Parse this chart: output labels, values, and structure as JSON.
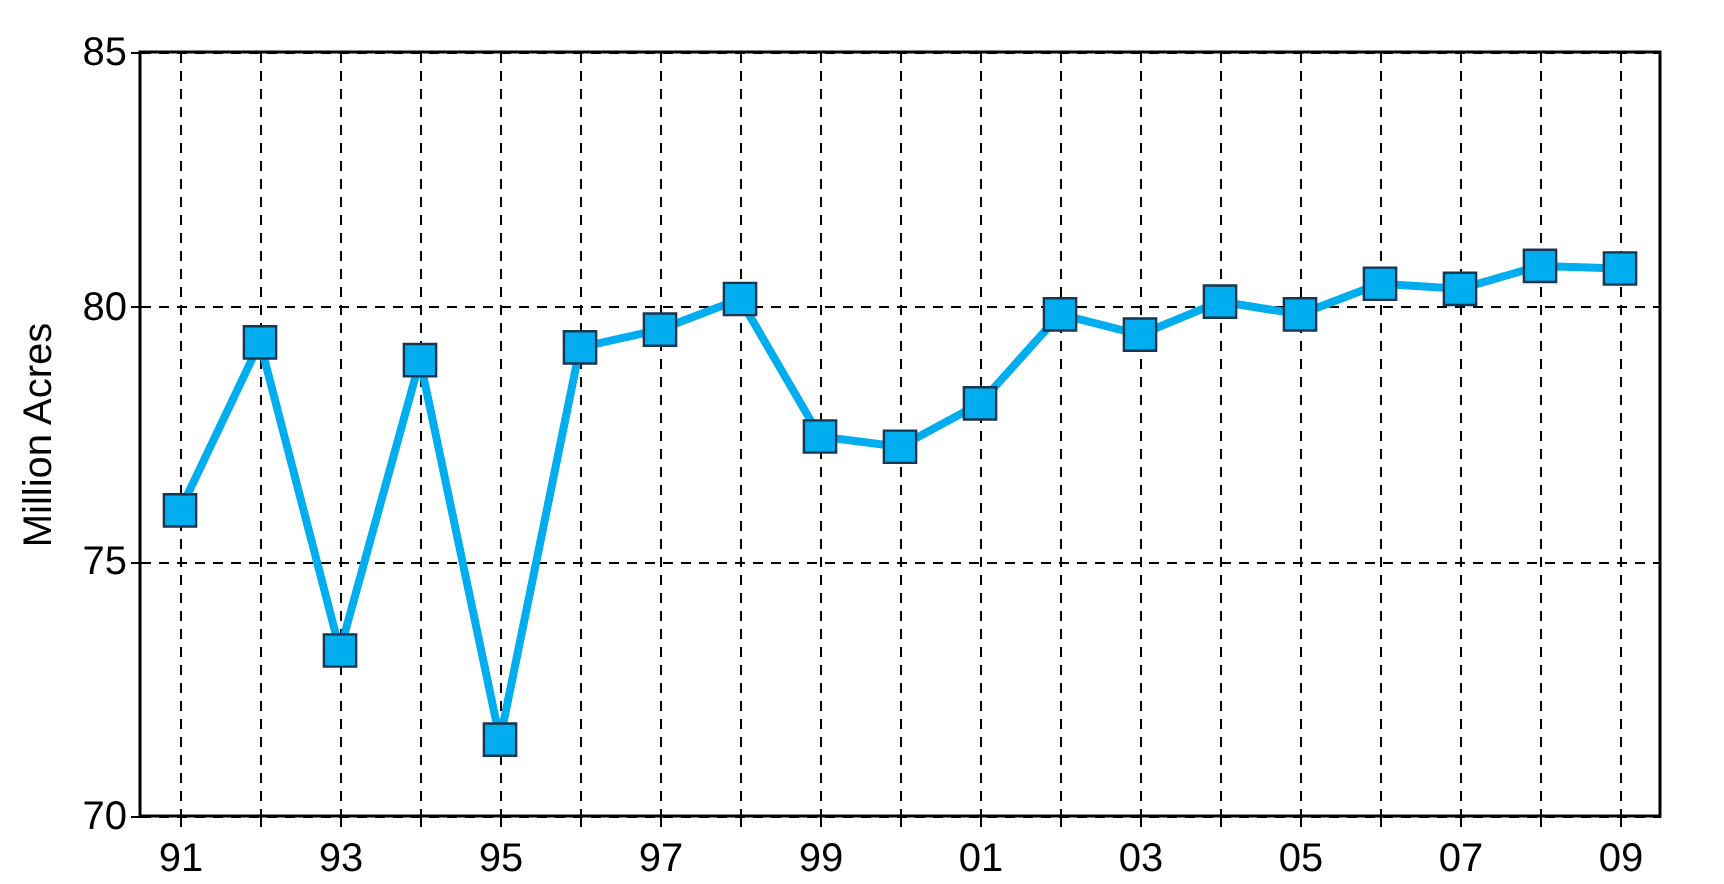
{
  "chart_data": {
    "type": "line",
    "ylabel": "Million Acres",
    "categories": [
      "91",
      null,
      "93",
      null,
      "95",
      null,
      "97",
      null,
      "99",
      null,
      "01",
      null,
      "03",
      null,
      "05",
      null,
      "07",
      null,
      "09"
    ],
    "series": [
      {
        "color": "#00aeef",
        "values": [
          76.0,
          79.3,
          73.25,
          78.95,
          71.5,
          79.2,
          79.55,
          80.15,
          77.45,
          77.25,
          78.1,
          79.85,
          79.45,
          80.1,
          79.85,
          80.45,
          80.35,
          80.8,
          80.75
        ]
      }
    ],
    "ylim": [
      70,
      85
    ],
    "yticks": [
      70,
      75,
      80,
      85
    ],
    "grid": true,
    "marker": "square",
    "line_style": "solid"
  }
}
